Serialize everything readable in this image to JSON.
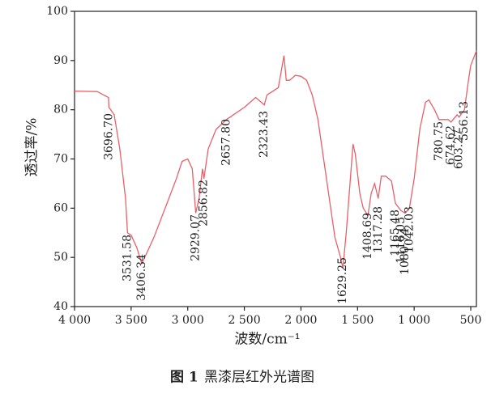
{
  "chart_data": {
    "type": "line",
    "y_label": "透过率/%",
    "x_label": "波数/cm⁻¹",
    "figure_label": "图 1",
    "caption": "黑漆层红外光谱图",
    "xlim": [
      4000,
      450
    ],
    "ylim": [
      40,
      100
    ],
    "xticks": [
      {
        "value": 4000,
        "label": "4 000"
      },
      {
        "value": 3500,
        "label": "3 500"
      },
      {
        "value": 3000,
        "label": "3 000"
      },
      {
        "value": 2500,
        "label": "2 500"
      },
      {
        "value": 2000,
        "label": "2 000"
      },
      {
        "value": 1500,
        "label": "1 500"
      },
      {
        "value": 1000,
        "label": "1 000"
      },
      500
    ],
    "yticks": [
      40,
      50,
      60,
      70,
      80,
      90,
      100
    ],
    "series": [
      {
        "color": "#e8606a",
        "x": [
          4000,
          3800,
          3700,
          3696.7,
          3650,
          3600,
          3550,
          3531.58,
          3500,
          3450,
          3406.34,
          3380,
          3300,
          3200,
          3100,
          3050,
          3000,
          2960,
          2929.07,
          2900,
          2870,
          2856.82,
          2820,
          2750,
          2657.8,
          2500,
          2400,
          2323.43,
          2300,
          2200,
          2150,
          2130,
          2100,
          2050,
          2000,
          1950,
          1900,
          1850,
          1800,
          1750,
          1700,
          1650,
          1629.25,
          1600,
          1560,
          1540,
          1520,
          1480,
          1450,
          1408.69,
          1380,
          1350,
          1317.28,
          1290,
          1250,
          1200,
          1165.48,
          1116.05,
          1080.74,
          1042.03,
          1000,
          950,
          900,
          870,
          820,
          780.75,
          700,
          674.62,
          620,
          603.27,
          556.13,
          520,
          500,
          450
        ],
        "values": [
          83.8,
          83.7,
          82.5,
          80.5,
          79,
          72,
          62,
          55,
          54.5,
          52,
          48.8,
          50,
          54,
          60,
          66,
          69.5,
          70,
          68,
          59,
          62,
          68,
          66,
          72,
          76,
          78,
          80.5,
          82.5,
          81,
          83,
          84.5,
          91,
          86,
          86,
          87,
          86.8,
          86,
          83,
          78,
          70,
          62,
          54,
          50,
          47.8,
          55,
          67,
          73,
          71,
          63,
          60,
          58.5,
          63,
          65,
          62,
          66.5,
          66.5,
          65.5,
          61,
          59.5,
          59,
          60,
          66,
          76,
          81.5,
          82,
          80,
          78,
          78,
          77.5,
          79,
          78.5,
          80,
          86,
          89,
          92
        ]
      }
    ],
    "annotations": [
      "3696.70",
      "3531.58",
      "3406.34",
      "2929.07",
      "2856.82",
      "2657.80",
      "2323.43",
      "1629.25",
      "1408.69",
      "1317.28",
      "1165.48",
      "1116.05",
      "1080.74",
      "1042.03",
      "780.75",
      "674.62",
      "603.27",
      "556.13"
    ]
  }
}
